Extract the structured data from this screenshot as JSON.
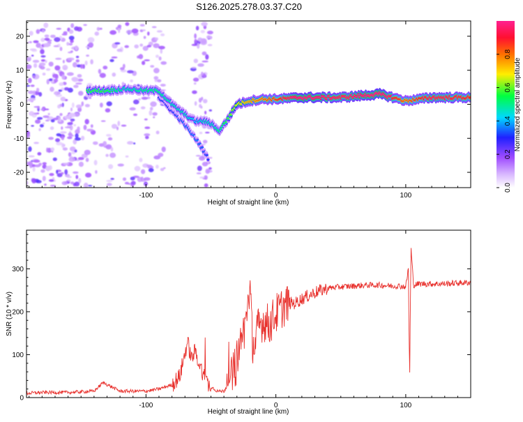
{
  "title": "S126.2025.278.03.37.C20",
  "chart_data": [
    {
      "type": "heatmap",
      "xlabel": "Height of straight line (km)",
      "ylabel": "Frequency (Hz)",
      "xlim": [
        -192,
        150
      ],
      "ylim": [
        -24.5,
        24.5
      ],
      "xticks": [
        -100,
        0,
        100
      ],
      "yticks": [
        -20,
        -10,
        0,
        10,
        20
      ],
      "colorbar": {
        "label": "Normalized spectral amplitude",
        "range": [
          0,
          1
        ],
        "ticks": [
          0,
          0.2,
          0.4,
          0.6,
          0.8
        ],
        "tick_labels": [
          "0.0",
          "0.2",
          "0.4",
          "0.6",
          "0.8"
        ]
      },
      "ridge": {
        "x": [
          -145,
          -130,
          -115,
          -100,
          -90,
          -80,
          -70,
          -62,
          -55,
          -48,
          -44,
          -38,
          -30,
          -20,
          -10,
          0,
          20,
          50,
          80,
          100,
          120,
          150
        ],
        "y": [
          4,
          4,
          4.5,
          4,
          4,
          0,
          -3,
          -5,
          -5,
          -6,
          -8,
          -5,
          0,
          1,
          1.5,
          1.5,
          2,
          2,
          3,
          1,
          2,
          2
        ],
        "amplitude": [
          0.45,
          0.45,
          0.35,
          0.4,
          0.4,
          0.35,
          0.35,
          0.3,
          0.35,
          0.35,
          0.4,
          0.45,
          0.55,
          0.65,
          0.7,
          0.75,
          0.95,
          0.85,
          0.95,
          0.7,
          0.85,
          0.8
        ]
      },
      "branch": {
        "x": [
          -90,
          -80,
          -70,
          -60,
          -52
        ],
        "y": [
          2,
          -2,
          -6,
          -11,
          -16
        ],
        "amplitude": [
          0.2,
          0.2,
          0.25,
          0.25,
          0.2
        ]
      }
    },
    {
      "type": "line",
      "xlabel": "Height of straight line (km)",
      "ylabel": "SNR (10 * v/v)",
      "xlim": [
        -192,
        150
      ],
      "ylim": [
        0,
        390
      ],
      "xticks": [
        -100,
        0,
        100
      ],
      "yticks": [
        0,
        100,
        200,
        300
      ],
      "series": [
        {
          "name": "SNR",
          "color": "#e8302c",
          "x": [
            -192,
            -180,
            -160,
            -140,
            -133,
            -120,
            -100,
            -90,
            -80,
            -74,
            -68,
            -65,
            -62,
            -58,
            -52,
            -45,
            -40,
            -35,
            -30,
            -28,
            -25,
            -22,
            -20,
            -18,
            -16,
            -14,
            -10,
            -5,
            0,
            5,
            10,
            15,
            20,
            30,
            40,
            50,
            60,
            70,
            80,
            90,
            95,
            100,
            102,
            103,
            104,
            106,
            110,
            120,
            130,
            140,
            150
          ],
          "y": [
            10,
            12,
            12,
            15,
            35,
            15,
            15,
            20,
            30,
            50,
            130,
            90,
            110,
            70,
            30,
            15,
            15,
            40,
            80,
            120,
            150,
            200,
            260,
            130,
            120,
            160,
            180,
            170,
            195,
            210,
            220,
            220,
            230,
            245,
            255,
            258,
            260,
            262,
            262,
            260,
            260,
            258,
            300,
            40,
            350,
            262,
            265,
            265,
            265,
            267,
            268
          ]
        }
      ]
    }
  ]
}
